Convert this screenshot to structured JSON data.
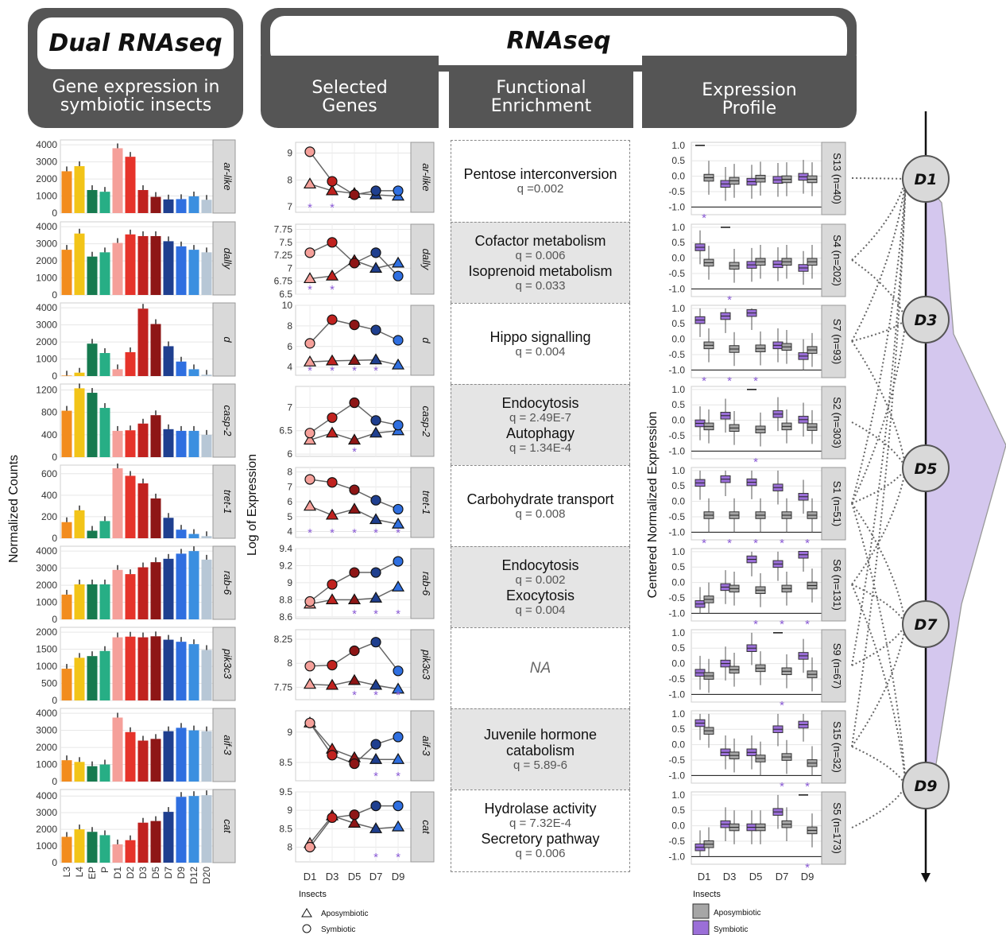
{
  "headers": {
    "dual_title": "Dual RNAseq",
    "dual_sub": "Gene expression in\nsymbiotic insects",
    "rnaseq_title": "RNAseq",
    "selected": "Selected\nGenes",
    "functional": "Functional\nEnrichment",
    "profile": "Expression\nProfile"
  },
  "axis_labels": {
    "left_y": "Normalized Counts",
    "mid_y": "Log of Expression",
    "right_y": "Centered Normalized Expression"
  },
  "legend": {
    "mid_title": "Insects",
    "mid_items": [
      "Aposymbiotic",
      "Symbiotic"
    ],
    "right_title": "Insects",
    "right_items": [
      "Aposymbiotic",
      "Symbiotic"
    ]
  },
  "colors": {
    "stages": [
      "#f28c1e",
      "#f2c418",
      "#167a4f",
      "#27ae85",
      "#f5a09a",
      "#e6332a",
      "#c0221f",
      "#8e1616",
      "#1f3f8f",
      "#2f6fe0",
      "#3b8fe0",
      "#b7c7d6"
    ],
    "sym_box": "#9b6fd8",
    "apo_box": "#a6a6a6",
    "timeline_fill": "#d4c7ee",
    "star": "#8a5ad6"
  },
  "chart_data": [
    {
      "type": "bar",
      "panel": "normalized counts per developmental stage",
      "categories": [
        "L3",
        "L4",
        "EP",
        "P",
        "D1",
        "D2",
        "D3",
        "D5",
        "D7",
        "D9",
        "D12",
        "D20"
      ],
      "series": [
        {
          "name": "ar-like",
          "values": [
            2450,
            2750,
            1350,
            1250,
            3800,
            3300,
            1350,
            950,
            800,
            820,
            980,
            780
          ],
          "yticks": [
            0,
            1000,
            2000,
            3000,
            4000
          ],
          "ylim": [
            0,
            4100
          ]
        },
        {
          "name": "dally",
          "values": [
            2650,
            3600,
            2250,
            2500,
            3050,
            3550,
            3450,
            3450,
            3150,
            2850,
            2650,
            2500
          ],
          "yticks": [
            0,
            1000,
            2000,
            3000,
            4000
          ],
          "ylim": [
            0,
            4100
          ]
        },
        {
          "name": "d",
          "values": [
            30,
            200,
            1900,
            1350,
            400,
            1400,
            3950,
            3050,
            1750,
            850,
            400,
            80
          ],
          "yticks": [
            0,
            1000,
            2000,
            3000,
            4000
          ],
          "ylim": [
            0,
            4100
          ]
        },
        {
          "name": "casp-2",
          "values": [
            830,
            1230,
            1150,
            880,
            470,
            480,
            600,
            750,
            500,
            470,
            470,
            400
          ],
          "yticks": [
            0,
            400,
            800,
            1200
          ],
          "ylim": [
            0,
            1250
          ]
        },
        {
          "name": "tret-1",
          "values": [
            150,
            260,
            70,
            160,
            650,
            580,
            510,
            370,
            190,
            80,
            40,
            20
          ],
          "yticks": [
            0,
            200,
            400,
            600
          ],
          "ylim": [
            0,
            650
          ]
        },
        {
          "name": "rab-6",
          "values": [
            1450,
            2050,
            2050,
            2050,
            2900,
            2650,
            3050,
            3350,
            3550,
            3850,
            4000,
            3500
          ],
          "yticks": [
            0,
            1000,
            2000,
            3000,
            4000
          ],
          "ylim": [
            0,
            4100
          ]
        },
        {
          "name": "pik3c3",
          "values": [
            930,
            1250,
            1300,
            1450,
            1850,
            1870,
            1850,
            1880,
            1780,
            1720,
            1650,
            1480
          ],
          "yticks": [
            0,
            500,
            1000,
            1500,
            2000
          ],
          "ylim": [
            0,
            2050
          ]
        },
        {
          "name": "aif-3",
          "values": [
            1250,
            1150,
            900,
            1000,
            3750,
            2900,
            2400,
            2500,
            2950,
            3150,
            3000,
            2950
          ],
          "yticks": [
            0,
            1000,
            2000,
            3000,
            4000
          ],
          "ylim": [
            0,
            4100
          ]
        },
        {
          "name": "cat",
          "values": [
            1550,
            2000,
            1850,
            1650,
            1100,
            1350,
            2400,
            2500,
            3050,
            3950,
            4000,
            4050
          ],
          "yticks": [
            0,
            1000,
            2000,
            3000,
            4000
          ],
          "ylim": [
            0,
            4200
          ]
        }
      ]
    },
    {
      "type": "line",
      "panel": "log of expression, selected genes",
      "x": [
        "D1",
        "D3",
        "D5",
        "D7",
        "D9"
      ],
      "genes": [
        {
          "name": "ar-like",
          "yticks": [
            7,
            8,
            9
          ],
          "ylim": [
            6.8,
            9.4
          ],
          "Aposymbiotic": [
            7.85,
            7.6,
            7.5,
            7.45,
            7.4
          ],
          "Symbiotic": [
            9.05,
            7.95,
            7.45,
            7.6,
            7.6
          ],
          "stars": [
            0,
            1
          ]
        },
        {
          "name": "dally",
          "yticks": [
            6.5,
            6.75,
            7.0,
            7.25,
            7.5,
            7.75
          ],
          "ylim": [
            6.5,
            7.85
          ],
          "Aposymbiotic": [
            6.8,
            6.85,
            7.15,
            7.0,
            7.1
          ],
          "Symbiotic": [
            7.3,
            7.5,
            7.1,
            7.3,
            6.85
          ],
          "stars": [
            0,
            1
          ]
        },
        {
          "name": "d",
          "yticks": [
            4,
            6,
            8,
            10
          ],
          "ylim": [
            3.2,
            10
          ],
          "Aposymbiotic": [
            4.5,
            4.6,
            4.65,
            4.7,
            4.2
          ],
          "Symbiotic": [
            6.3,
            8.6,
            8.1,
            7.6,
            6.6
          ],
          "stars": [
            0,
            1,
            2,
            3
          ]
        },
        {
          "name": "casp-2",
          "yticks": [
            6.0,
            6.5,
            7.0
          ],
          "ylim": [
            5.95,
            7.45
          ],
          "Aposymbiotic": [
            6.3,
            6.45,
            6.3,
            6.45,
            6.5
          ],
          "Symbiotic": [
            6.45,
            6.78,
            7.1,
            6.72,
            6.62
          ],
          "stars": [
            2
          ]
        },
        {
          "name": "tret-1",
          "yticks": [
            4,
            5,
            6,
            7,
            8
          ],
          "ylim": [
            3.6,
            8.3
          ],
          "Aposymbiotic": [
            5.7,
            5.1,
            5.5,
            4.8,
            4.5
          ],
          "Symbiotic": [
            7.5,
            7.3,
            6.8,
            6.1,
            5.5
          ],
          "stars": [
            0,
            1,
            2,
            3,
            4
          ]
        },
        {
          "name": "rab-6",
          "yticks": [
            8.6,
            8.8,
            9.0,
            9.2,
            9.4
          ],
          "ylim": [
            8.58,
            9.4
          ],
          "Aposymbiotic": [
            8.75,
            8.8,
            8.8,
            8.82,
            8.95
          ],
          "Symbiotic": [
            8.78,
            8.98,
            9.12,
            9.12,
            9.25
          ],
          "stars": [
            2,
            3,
            4
          ]
        },
        {
          "name": "pik3c3",
          "yticks": [
            7.75,
            8.0,
            8.25
          ],
          "ylim": [
            7.62,
            8.35
          ],
          "Aposymbiotic": [
            7.78,
            7.77,
            7.82,
            7.77,
            7.73
          ],
          "Symbiotic": [
            7.97,
            7.98,
            8.13,
            8.22,
            7.92
          ],
          "stars": [
            2,
            3,
            4
          ]
        },
        {
          "name": "aif-3",
          "yticks": [
            8.5,
            9.0
          ],
          "ylim": [
            8.2,
            9.35
          ],
          "Aposymbiotic": [
            9.15,
            8.72,
            8.58,
            8.55,
            8.55
          ],
          "Symbiotic": [
            9.15,
            8.62,
            8.48,
            8.8,
            8.92
          ],
          "stars": [
            3,
            4
          ]
        },
        {
          "name": "cat",
          "yticks": [
            8.0,
            8.5,
            9.0,
            9.5
          ],
          "ylim": [
            7.6,
            9.5
          ],
          "Aposymbiotic": [
            8.1,
            8.85,
            8.65,
            8.5,
            8.55
          ],
          "Symbiotic": [
            8.0,
            8.8,
            8.88,
            9.12,
            9.12
          ],
          "stars": [
            3,
            4
          ]
        }
      ]
    },
    {
      "type": "table",
      "panel": "functional enrichment",
      "rows": [
        {
          "terms": [
            {
              "t": "Pentose interconversion",
              "q": "q =0.002"
            }
          ]
        },
        {
          "terms": [
            {
              "t": "Cofactor metabolism",
              "q": "q = 0.006"
            },
            {
              "t": "Isoprenoid metabolism",
              "q": "q = 0.033"
            }
          ]
        },
        {
          "terms": [
            {
              "t": "Hippo signalling",
              "q": "q = 0.004"
            }
          ]
        },
        {
          "terms": [
            {
              "t": "Endocytosis",
              "q": "q = 2.49E-7"
            },
            {
              "t": "Autophagy",
              "q": "q = 1.34E-4"
            }
          ]
        },
        {
          "terms": [
            {
              "t": "Carbohydrate transport",
              "q": "q = 0.008"
            }
          ]
        },
        {
          "terms": [
            {
              "t": "Endocytosis",
              "q": "q = 0.002"
            },
            {
              "t": "Exocytosis",
              "q": "q = 0.004"
            }
          ]
        },
        {
          "na": "NA",
          "terms": []
        },
        {
          "terms": [
            {
              "t": "Juvenile hormone\ncatabolism",
              "q": "q = 5.89-6"
            }
          ]
        },
        {
          "terms": [
            {
              "t": "Hydrolase activity",
              "q": "q = 7.32E-4"
            },
            {
              "t": "Secretory pathway",
              "q": "q = 0.006"
            }
          ]
        }
      ]
    },
    {
      "type": "box",
      "panel": "expression profile clusters",
      "x": [
        "D1",
        "D3",
        "D5",
        "D7",
        "D9"
      ],
      "yticks": [
        -1.0,
        -0.5,
        0.0,
        0.5,
        1.0
      ],
      "ylim": [
        -1.25,
        1.1
      ],
      "clusters": [
        {
          "name": "S13 (n=40)",
          "sym": [
            1.0,
            -0.25,
            -0.18,
            -0.12,
            -0.02
          ],
          "apo": [
            -0.05,
            -0.15,
            -0.08,
            -0.1,
            -0.1
          ],
          "stars": [
            0
          ]
        },
        {
          "name": "S4 (n=202)",
          "sym": [
            0.35,
            1.0,
            -0.22,
            -0.2,
            -0.32
          ],
          "apo": [
            -0.15,
            -0.25,
            -0.12,
            -0.12,
            -0.12
          ],
          "stars": [
            1
          ]
        },
        {
          "name": "S7 (n=93)",
          "sym": [
            0.62,
            0.75,
            0.85,
            -0.2,
            -0.55
          ],
          "apo": [
            -0.2,
            -0.32,
            -0.3,
            -0.25,
            -0.35
          ],
          "stars": [
            0,
            1,
            2
          ]
        },
        {
          "name": "S2 (n=303)",
          "sym": [
            -0.1,
            0.15,
            1.0,
            0.2,
            0.02
          ],
          "apo": [
            -0.2,
            -0.25,
            -0.3,
            -0.2,
            -0.22
          ],
          "stars": [
            2
          ]
        },
        {
          "name": "S1 (n=51)",
          "sym": [
            0.6,
            0.72,
            0.62,
            0.45,
            0.15
          ],
          "apo": [
            -0.45,
            -0.45,
            -0.45,
            -0.45,
            -0.45
          ],
          "stars": [
            0,
            1,
            2,
            3,
            4
          ]
        },
        {
          "name": "S6 (n=131)",
          "sym": [
            -0.7,
            -0.15,
            0.75,
            0.6,
            0.9
          ],
          "apo": [
            -0.55,
            -0.2,
            -0.25,
            -0.2,
            -0.1
          ],
          "stars": [
            2,
            3,
            4
          ]
        },
        {
          "name": "S9 (n=67)",
          "sym": [
            -0.3,
            0.0,
            0.5,
            1.0,
            0.25
          ],
          "apo": [
            -0.4,
            -0.2,
            -0.15,
            -0.25,
            -0.35
          ],
          "stars": [
            3
          ]
        },
        {
          "name": "S15 (n=32)",
          "sym": [
            0.7,
            -0.25,
            -0.25,
            0.5,
            0.65
          ],
          "apo": [
            0.45,
            -0.35,
            -0.45,
            -0.4,
            -0.6
          ],
          "stars": [
            3,
            4
          ]
        },
        {
          "name": "S5 (n=173)",
          "sym": [
            -0.7,
            0.05,
            -0.05,
            0.45,
            1.0
          ],
          "apo": [
            -0.6,
            -0.05,
            -0.05,
            0.05,
            -0.15
          ],
          "stars": [
            4
          ]
        }
      ]
    },
    {
      "type": "diagram",
      "panel": "timeline",
      "nodes": [
        "D1",
        "D3",
        "D5",
        "D7",
        "D9"
      ]
    }
  ],
  "x_labels_left": [
    "L3",
    "L4",
    "EP",
    "P",
    "D1",
    "D2",
    "D3",
    "D5",
    "D7",
    "D9",
    "D12",
    "D20"
  ]
}
